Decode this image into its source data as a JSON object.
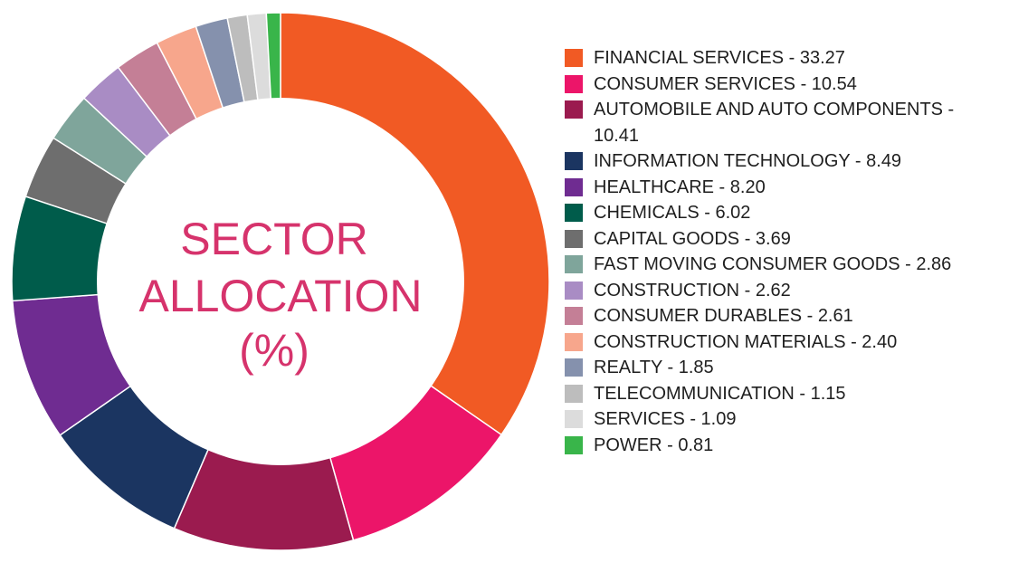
{
  "chart_data": {
    "type": "pie",
    "title": "SECTOR ALLOCATION (%)",
    "title_lines": [
      "SECTOR",
      "ALLOCATION",
      "(%)"
    ],
    "legend_position": "right",
    "slices": [
      {
        "label": "FINANCIAL SERVICES - 33.27",
        "name": "FINANCIAL SERVICES",
        "value": 33.27,
        "color": "#f15a24"
      },
      {
        "label": "CONSUMER SERVICES - 10.54",
        "name": "CONSUMER SERVICES",
        "value": 10.54,
        "color": "#ec1569"
      },
      {
        "label": "AUTOMOBILE AND AUTO COMPONENTS - 10.41",
        "name": "AUTOMOBILE AND AUTO COMPONENTS",
        "value": 10.41,
        "color": "#9b1b4f"
      },
      {
        "label": "INFORMATION TECHNOLOGY - 8.49",
        "name": "INFORMATION TECHNOLOGY",
        "value": 8.49,
        "color": "#1b3561"
      },
      {
        "label": "HEALTHCARE - 8.20",
        "name": "HEALTHCARE",
        "value": 8.2,
        "color": "#6f2c91"
      },
      {
        "label": "CHEMICALS - 6.02",
        "name": "CHEMICALS",
        "value": 6.02,
        "color": "#005c4b"
      },
      {
        "label": "CAPITAL GOODS - 3.69",
        "name": "CAPITAL GOODS",
        "value": 3.69,
        "color": "#6e6e6e"
      },
      {
        "label": "FAST MOVING CONSUMER GOODS - 2.86",
        "name": "FAST MOVING CONSUMER GOODS",
        "value": 2.86,
        "color": "#7fa59b"
      },
      {
        "label": "CONSTRUCTION - 2.62",
        "name": "CONSTRUCTION",
        "value": 2.62,
        "color": "#a98cc4"
      },
      {
        "label": "CONSUMER DURABLES - 2.61",
        "name": "CONSUMER DURABLES",
        "value": 2.61,
        "color": "#c47f96"
      },
      {
        "label": "CONSTRUCTION MATERIALS - 2.40",
        "name": "CONSTRUCTION MATERIALS",
        "value": 2.4,
        "color": "#f7a68c"
      },
      {
        "label": "REALTY - 1.85",
        "name": "REALTY",
        "value": 1.85,
        "color": "#8591ad"
      },
      {
        "label": "TELECOMMUNICATION - 1.15",
        "name": "TELECOMMUNICATION",
        "value": 1.15,
        "color": "#bdbdbd"
      },
      {
        "label": "SERVICES - 1.09",
        "name": "SERVICES",
        "value": 1.09,
        "color": "#dcdcdc"
      },
      {
        "label": "POWER - 0.81",
        "name": "POWER",
        "value": 0.81,
        "color": "#39b54a"
      }
    ]
  }
}
